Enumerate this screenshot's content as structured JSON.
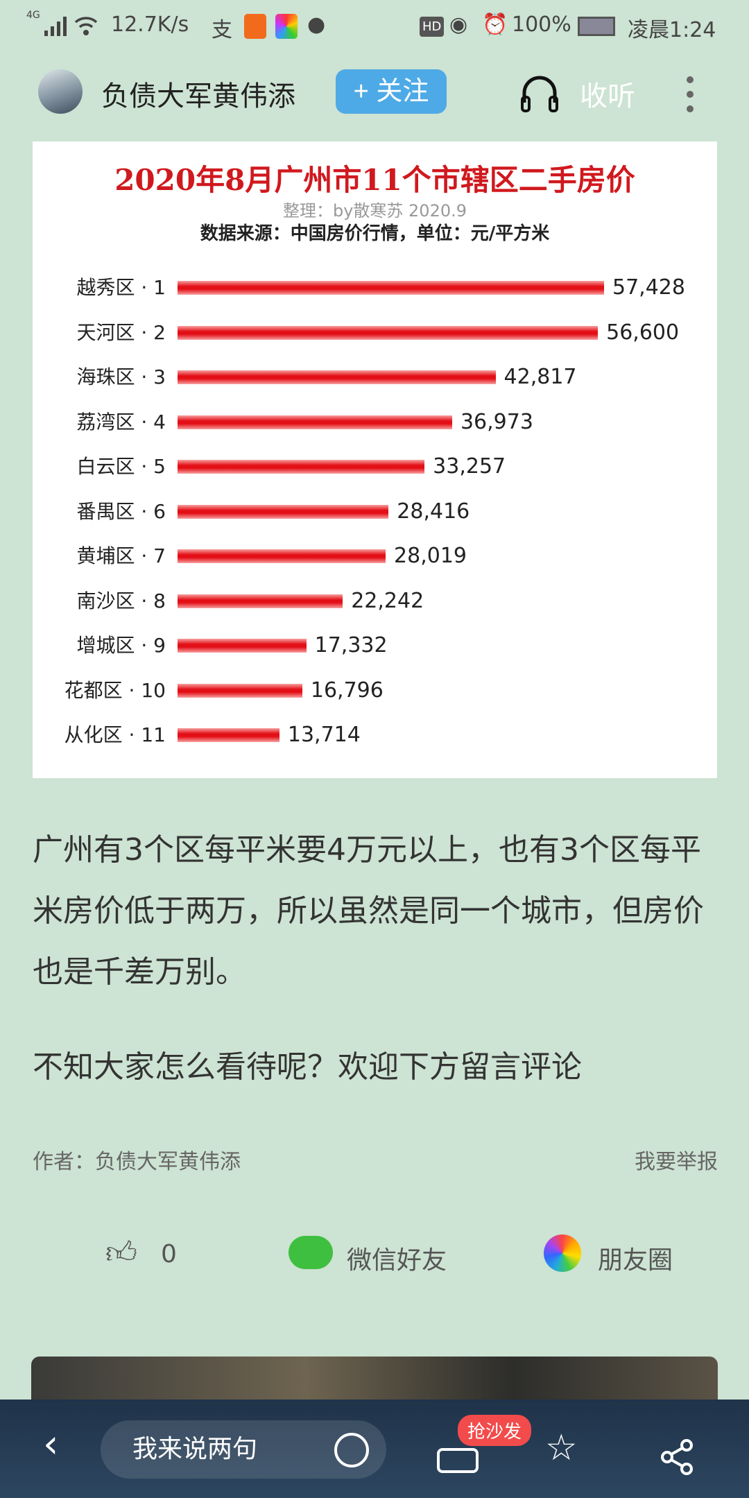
{
  "status_bar": {
    "network": "4G",
    "speed": "12.7K/s",
    "alipay": "支",
    "battery": "100%",
    "time": "凌晨1:24",
    "hd": "HD"
  },
  "header": {
    "author": "负债大军黄伟添",
    "follow_label": "+ 关注",
    "listen_label": "收听"
  },
  "chart_data": {
    "type": "bar",
    "orientation": "horizontal",
    "title": "2020年8月广州市11个市辖区二手房价",
    "subtitle": "整理：by散寒苏 2020.9",
    "source": "数据来源：中国房价行情，单位：元/平方米",
    "categories": [
      "越秀区 · 1",
      "天河区 · 2",
      "海珠区 · 3",
      "荔湾区 · 4",
      "白云区 · 5",
      "番禺区 · 6",
      "黄埔区 · 7",
      "南沙区 · 8",
      "增城区 · 9",
      "花都区 · 10",
      "从化区 · 11"
    ],
    "values": [
      57428,
      56600,
      42817,
      36973,
      33257,
      28416,
      28019,
      22242,
      17332,
      16796,
      13714
    ],
    "value_labels": [
      "57,428",
      "56,600",
      "42,817",
      "36,973",
      "33,257",
      "28,416",
      "28,019",
      "22,242",
      "17,332",
      "16,796",
      "13,714"
    ],
    "bar_color": "#e30f16"
  },
  "article": {
    "paragraph1": "广州有3个区每平米要4万元以上，也有3个区每平米房价低于两万，所以虽然是同一个城市，但房价也是千差万别。",
    "paragraph2": "不知大家怎么看待呢？欢迎下方留言评论",
    "author_line": "作者：负债大军黄伟添",
    "report": "我要举报"
  },
  "actions": {
    "likes": "0",
    "wechat": "微信好友",
    "moments": "朋友圈"
  },
  "bottom_bar": {
    "comment_placeholder": "我来说两句",
    "sofa_badge": "抢沙发"
  }
}
